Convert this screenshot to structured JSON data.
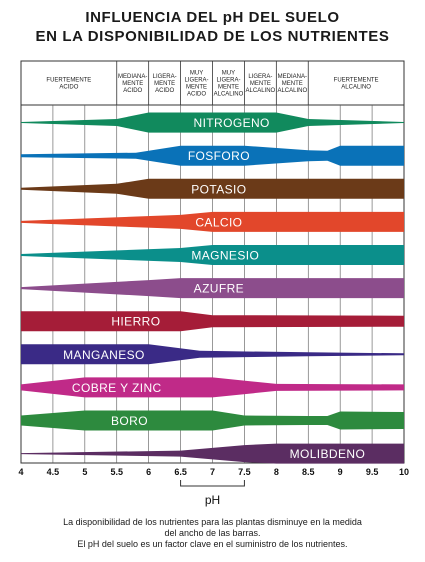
{
  "title_line1": "INFLUENCIA DEL pH DEL SUELO",
  "title_line2": "EN LA DISPONIBILIDAD DE LOS NUTRIENTES",
  "caption": [
    "La disponibilidad de los nutrientes para las plantas disminuye en la medida",
    "del ancho de las barras.",
    "El pH del suelo es un factor clave en el suministro de los nutrientes."
  ],
  "chart_data": {
    "type": "area",
    "xlabel": "pH",
    "xlim": [
      4,
      10
    ],
    "x_ticks": [
      "4",
      "4.5",
      "5",
      "5.5",
      "6",
      "6.5",
      "7",
      "7.5",
      "8",
      "8.5",
      "9",
      "9.5",
      "10"
    ],
    "optimal_range": [
      6.5,
      7.5
    ],
    "grid": true,
    "acidity_bands": [
      {
        "lines": [
          "FUERTEMENTE",
          "ACIDO"
        ],
        "range": [
          4,
          5.5
        ]
      },
      {
        "lines": [
          "MEDIANA-",
          "MENTE",
          "ACIDO"
        ],
        "range": [
          5.5,
          6
        ]
      },
      {
        "lines": [
          "LIGERA-",
          "MENTE",
          "ACIDO"
        ],
        "range": [
          6,
          6.5
        ]
      },
      {
        "lines": [
          "MUY",
          "LIGERA-",
          "MENTE",
          "ACIDO"
        ],
        "range": [
          6.5,
          7
        ]
      },
      {
        "lines": [
          "MUY",
          "LIGERA-",
          "MENTE",
          "ALCALINO"
        ],
        "range": [
          7,
          7.5
        ]
      },
      {
        "lines": [
          "LIGERA-",
          "MENTE",
          "ALCALINO"
        ],
        "range": [
          7.5,
          8
        ]
      },
      {
        "lines": [
          "MEDIANA-",
          "MENTE",
          "ALCALINO"
        ],
        "range": [
          8,
          8.5
        ]
      },
      {
        "lines": [
          "FUERTEMENTE",
          "ALCALINO"
        ],
        "range": [
          8.5,
          10
        ]
      }
    ],
    "series": [
      {
        "name": "NITROGENO",
        "color": "#118a5d",
        "label_x": 7.3,
        "profile": [
          [
            4,
            0.05
          ],
          [
            5.5,
            0.35
          ],
          [
            6,
            1
          ],
          [
            8,
            1
          ],
          [
            8.5,
            0.35
          ],
          [
            10,
            0.05
          ]
        ]
      },
      {
        "name": "FOSFORO",
        "color": "#0a72b8",
        "label_x": 7.1,
        "profile": [
          [
            4,
            0.15
          ],
          [
            5.8,
            0.3
          ],
          [
            6.5,
            1
          ],
          [
            7.5,
            1
          ],
          [
            8.5,
            0.55
          ],
          [
            8.8,
            0.5
          ],
          [
            9,
            1
          ],
          [
            10,
            1
          ]
        ]
      },
      {
        "name": "POTASIO",
        "color": "#6b3a18",
        "label_x": 7.1,
        "profile": [
          [
            4,
            0.1
          ],
          [
            5.5,
            0.5
          ],
          [
            6,
            1
          ],
          [
            10,
            1
          ]
        ]
      },
      {
        "name": "CALCIO",
        "color": "#e2472b",
        "label_x": 7.1,
        "profile": [
          [
            4,
            0.1
          ],
          [
            6.5,
            0.7
          ],
          [
            7,
            1
          ],
          [
            10,
            1
          ]
        ]
      },
      {
        "name": "MAGNESIO",
        "color": "#0b8f8b",
        "label_x": 7.2,
        "profile": [
          [
            4,
            0.1
          ],
          [
            6.5,
            0.7
          ],
          [
            7,
            1
          ],
          [
            10,
            1
          ]
        ]
      },
      {
        "name": "AZUFRE",
        "color": "#8c4d8c",
        "label_x": 7.1,
        "profile": [
          [
            4,
            0.1
          ],
          [
            6,
            0.8
          ],
          [
            6.5,
            1
          ],
          [
            10,
            1
          ]
        ]
      },
      {
        "name": "HIERRO",
        "color": "#a51d38",
        "label_x": 5.8,
        "profile": [
          [
            4,
            1
          ],
          [
            6.5,
            1
          ],
          [
            7,
            0.6
          ],
          [
            10,
            0.55
          ]
        ]
      },
      {
        "name": "MANGANESO",
        "color": "#3a2a86",
        "label_x": 5.3,
        "profile": [
          [
            4,
            1
          ],
          [
            6,
            1
          ],
          [
            6.8,
            0.35
          ],
          [
            8.5,
            0.2
          ],
          [
            10,
            0.1
          ]
        ]
      },
      {
        "name": "COBRE Y ZINC",
        "color": "#c02a88",
        "label_x": 5.5,
        "profile": [
          [
            4,
            0.3
          ],
          [
            5,
            1
          ],
          [
            7,
            1
          ],
          [
            8,
            0.35
          ],
          [
            10,
            0.3
          ]
        ]
      },
      {
        "name": "BORO",
        "color": "#2d8a3e",
        "label_x": 5.7,
        "profile": [
          [
            4,
            0.5
          ],
          [
            5,
            1
          ],
          [
            7,
            1
          ],
          [
            7.5,
            0.5
          ],
          [
            8.5,
            0.45
          ],
          [
            8.8,
            0.45
          ],
          [
            9,
            0.9
          ],
          [
            10,
            0.85
          ]
        ]
      },
      {
        "name": "MOLIBDENO",
        "color": "#5b2d62",
        "label_x": 8.8,
        "profile": [
          [
            4,
            0.05
          ],
          [
            6.5,
            0.3
          ],
          [
            7.5,
            0.85
          ],
          [
            8,
            1
          ],
          [
            10,
            1
          ]
        ]
      }
    ]
  }
}
